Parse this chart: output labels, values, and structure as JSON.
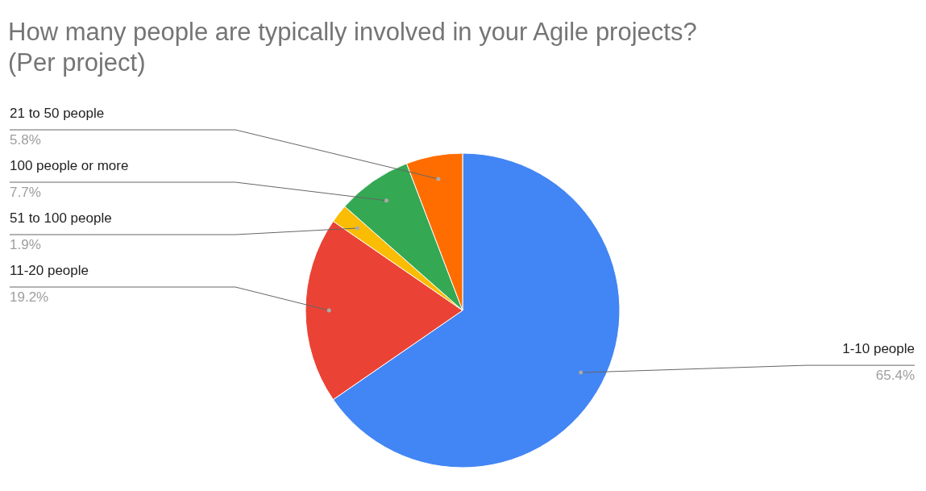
{
  "chart_data": {
    "type": "pie",
    "title": "How many people are typically involved in your Agile projects? (Per project)",
    "categories": [
      "1-10 people",
      "11-20 people",
      "51 to 100 people",
      "100 people or more",
      "21 to 50 people"
    ],
    "values": [
      65.4,
      19.2,
      1.9,
      7.7,
      5.8
    ],
    "value_labels": [
      "65.4%",
      "19.2%",
      "1.9%",
      "7.7%",
      "5.8%"
    ],
    "colors": [
      "#4285f4",
      "#ea4335",
      "#fbbc04",
      "#34a853",
      "#ff6d01"
    ],
    "legend": false
  }
}
